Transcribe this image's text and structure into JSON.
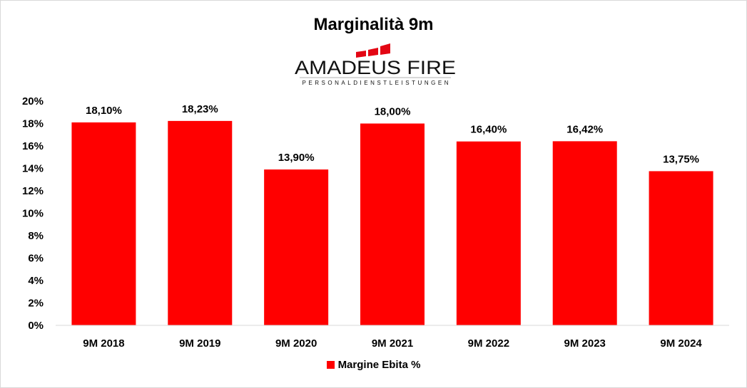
{
  "chart_data": {
    "type": "bar",
    "title": "Marginalità 9m",
    "logo_text": "AMADEUS FIRE",
    "logo_subtext": "PERSONALDIENSTLEISTUNGEN",
    "categories": [
      "9M 2018",
      "9M 2019",
      "9M 2020",
      "9M 2021",
      "9M 2022",
      "9M 2023",
      "9M 2024"
    ],
    "values": [
      18.1,
      18.23,
      13.9,
      18.0,
      16.4,
      16.42,
      13.75
    ],
    "data_labels": [
      "18,10%",
      "18,23%",
      "13,90%",
      "18,00%",
      "16,40%",
      "16,42%",
      "13,75%"
    ],
    "yticks": [
      "0%",
      "2%",
      "4%",
      "6%",
      "8%",
      "10%",
      "12%",
      "14%",
      "16%",
      "18%",
      "20%"
    ],
    "ylim": [
      0,
      20
    ],
    "xlabel": "",
    "ylabel": "",
    "legend": {
      "label": "Margine Ebita %",
      "position": "bottom"
    },
    "grid": false,
    "color": "#ff0000"
  }
}
